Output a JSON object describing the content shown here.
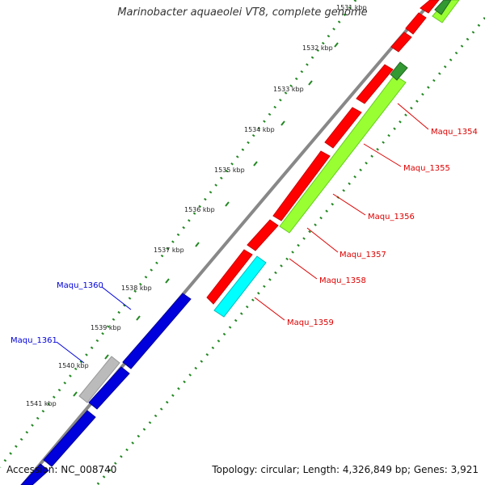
{
  "title": "Marinobacter aquaeolei VT8, complete genome",
  "accession": "Accession: NC_008740",
  "summary": "Topology: circular; Length: 4,326,849 bp; Genes: 3,921",
  "ticks": [
    "1531 kbp",
    "1532 kbp",
    "1533 kbp",
    "1534 kbp",
    "1535 kbp",
    "1536 kbp",
    "1537 kbp",
    "1538 kbp",
    "1539 kbp",
    "1540 kbp",
    "1541 kbp"
  ],
  "genes": {
    "maqu_1354": "Maqu_1354",
    "maqu_1355": "Maqu_1355",
    "maqu_1356": "Maqu_1356",
    "maqu_1357": "Maqu_1357",
    "maqu_1358": "Maqu_1358",
    "maqu_1359": "Maqu_1359",
    "maqu_1360": "Maqu_1360",
    "maqu_1361": "Maqu_1361"
  },
  "colors": {
    "forward_gene": "#ff0000",
    "reverse_gene": "#0000dd",
    "rna_gene": "#99ff33",
    "trna_gene": "#00ffff",
    "other_gene": "#bbbbbb",
    "dark_green": "#339933",
    "backbone": "#888888",
    "dots": "#228822"
  }
}
